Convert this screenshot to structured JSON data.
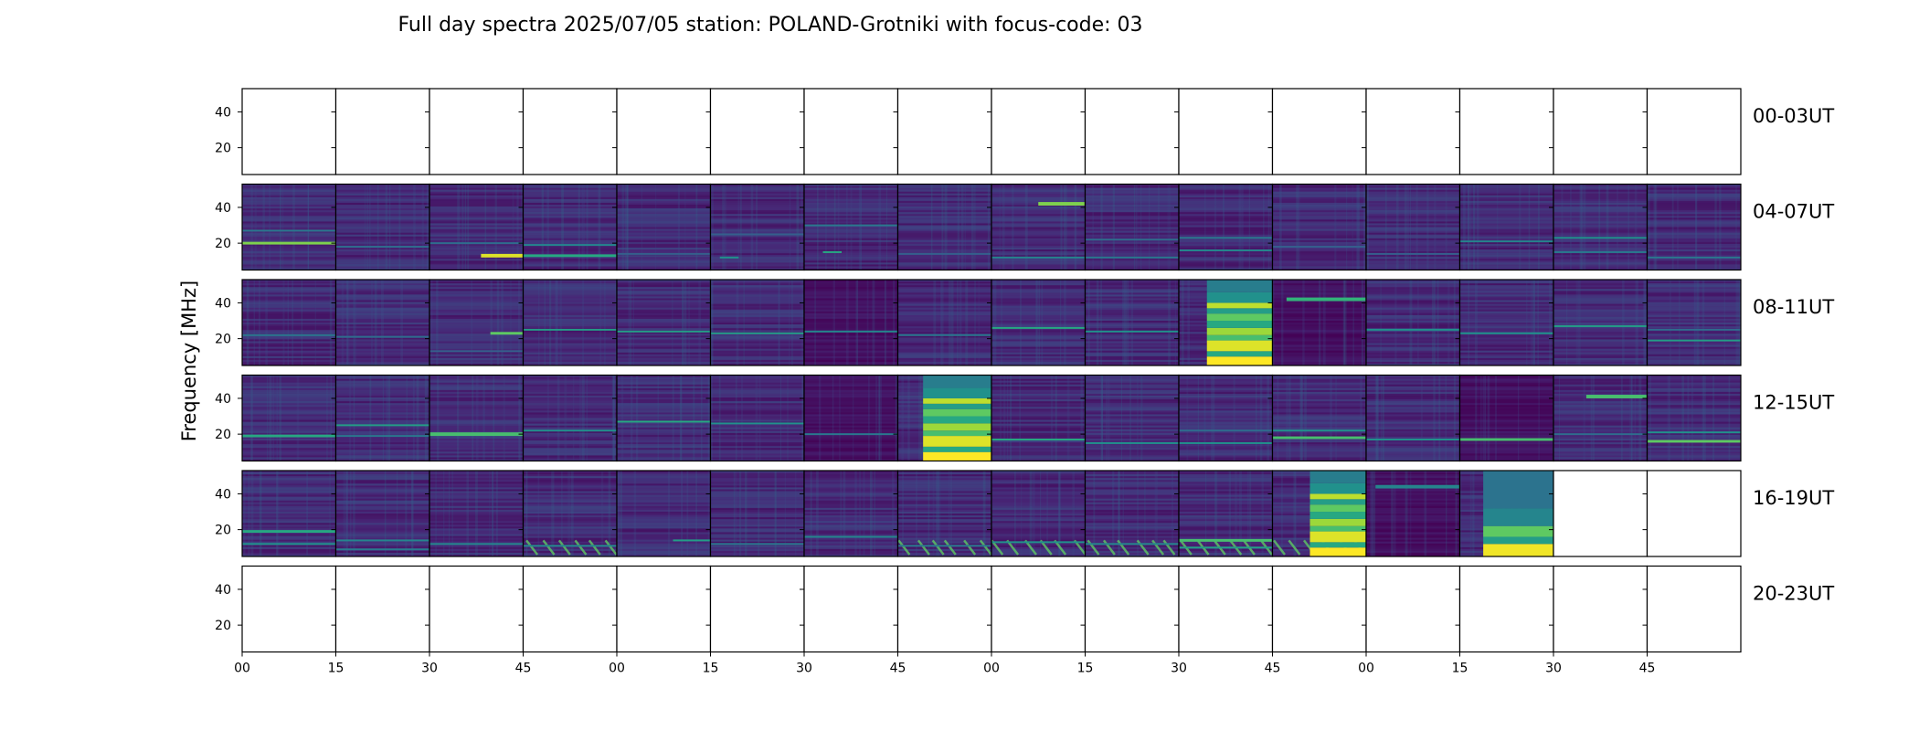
{
  "chart_data": {
    "type": "heatmap",
    "title": "Full day spectra 2025/07/05 station: POLAND-Grotniki with focus-code: 03",
    "ylabel": "Frequency [MHz]",
    "xlabel": "",
    "x_tick_labels": [
      "00",
      "15",
      "30",
      "45",
      "00",
      "15",
      "30",
      "45",
      "00",
      "15",
      "30",
      "45",
      "00",
      "15",
      "30",
      "45"
    ],
    "y_ticks": [
      20,
      40
    ],
    "ylim": [
      5,
      53
    ],
    "minutes_per_panel": 15,
    "panels_per_row": 16,
    "colormap": "viridis",
    "colormap_stops": [
      "#440154",
      "#472d7b",
      "#3b528b",
      "#2c728e",
      "#21918c",
      "#28ae80",
      "#5ec962",
      "#addc30",
      "#fde725"
    ],
    "rows": [
      {
        "label": "00-03UT",
        "panels": [
          {
            "has_data": false
          },
          {
            "has_data": false
          },
          {
            "has_data": false
          },
          {
            "has_data": false
          },
          {
            "has_data": false
          },
          {
            "has_data": false
          },
          {
            "has_data": false
          },
          {
            "has_data": false
          },
          {
            "has_data": false
          },
          {
            "has_data": false
          },
          {
            "has_data": false
          },
          {
            "has_data": false
          },
          {
            "has_data": false
          },
          {
            "has_data": false
          },
          {
            "has_data": false
          },
          {
            "has_data": false
          }
        ]
      },
      {
        "label": "04-07UT",
        "panels": [
          {
            "has_data": true,
            "bright_bands": [
              {
                "f": 20,
                "w": 1.5,
                "v": 0.8
              },
              {
                "f": 27,
                "w": 1,
                "v": 0.4
              }
            ]
          },
          {
            "has_data": true,
            "bright_bands": [
              {
                "f": 18,
                "w": 1,
                "v": 0.35
              }
            ]
          },
          {
            "has_data": true,
            "bright_bands": [
              {
                "f": 13,
                "w": 2,
                "v": 0.95,
                "t0": 0.55,
                "t1": 1
              },
              {
                "f": 20,
                "w": 1,
                "v": 0.35
              }
            ]
          },
          {
            "has_data": true,
            "bright_bands": [
              {
                "f": 13,
                "w": 1.5,
                "v": 0.6
              },
              {
                "f": 19,
                "w": 1,
                "v": 0.45
              }
            ]
          },
          {
            "has_data": true,
            "bright_bands": [
              {
                "f": 14,
                "w": 1,
                "v": 0.3
              }
            ]
          },
          {
            "has_data": true,
            "bright_bands": [
              {
                "f": 12,
                "w": 1,
                "v": 0.5,
                "t0": 0.1,
                "t1": 0.3
              },
              {
                "f": 25,
                "w": 1,
                "v": 0.3
              }
            ]
          },
          {
            "has_data": true,
            "bright_bands": [
              {
                "f": 15,
                "w": 1,
                "v": 0.6,
                "t0": 0.2,
                "t1": 0.4
              },
              {
                "f": 30,
                "w": 1,
                "v": 0.4
              }
            ]
          },
          {
            "has_data": true,
            "bright_bands": [
              {
                "f": 14,
                "w": 1,
                "v": 0.3
              }
            ]
          },
          {
            "has_data": true,
            "bright_bands": [
              {
                "f": 42,
                "w": 2,
                "v": 0.8,
                "t0": 0.5,
                "t1": 1
              },
              {
                "f": 12,
                "w": 1,
                "v": 0.45
              }
            ]
          },
          {
            "has_data": true,
            "bright_bands": [
              {
                "f": 22,
                "w": 1,
                "v": 0.35
              },
              {
                "f": 12,
                "w": 1,
                "v": 0.4
              }
            ]
          },
          {
            "has_data": true,
            "bright_bands": [
              {
                "f": 16,
                "w": 1,
                "v": 0.45
              },
              {
                "f": 23,
                "w": 1,
                "v": 0.4
              }
            ]
          },
          {
            "has_data": true,
            "bright_bands": [
              {
                "f": 18,
                "w": 1,
                "v": 0.3
              }
            ]
          },
          {
            "has_data": true,
            "bright_bands": [
              {
                "f": 14,
                "w": 1,
                "v": 0.3
              }
            ]
          },
          {
            "has_data": true,
            "bright_bands": [
              {
                "f": 21,
                "w": 1,
                "v": 0.45
              }
            ]
          },
          {
            "has_data": true,
            "bright_bands": [
              {
                "f": 23,
                "w": 1,
                "v": 0.5
              },
              {
                "f": 15,
                "w": 1,
                "v": 0.4
              }
            ]
          },
          {
            "has_data": true,
            "bright_bands": [
              {
                "f": 12,
                "w": 1,
                "v": 0.4
              }
            ]
          }
        ]
      },
      {
        "label": "08-11UT",
        "panels": [
          {
            "has_data": true,
            "bright_bands": [
              {
                "f": 22,
                "w": 1,
                "v": 0.4
              }
            ]
          },
          {
            "has_data": true,
            "bright_bands": [
              {
                "f": 21,
                "w": 1,
                "v": 0.35
              }
            ]
          },
          {
            "has_data": true,
            "bright_bands": [
              {
                "f": 23,
                "w": 1.5,
                "v": 0.75,
                "t0": 0.65,
                "t1": 1
              },
              {
                "f": 13,
                "w": 1,
                "v": 0.3
              }
            ]
          },
          {
            "has_data": true,
            "bright_bands": [
              {
                "f": 25,
                "w": 1,
                "v": 0.55
              }
            ]
          },
          {
            "has_data": true,
            "bright_bands": [
              {
                "f": 24,
                "w": 1,
                "v": 0.55
              }
            ]
          },
          {
            "has_data": true,
            "bright_bands": [
              {
                "f": 23,
                "w": 1,
                "v": 0.55
              }
            ]
          },
          {
            "has_data": true,
            "bright_bands": [
              {
                "f": 24,
                "w": 1,
                "v": 0.45
              }
            ],
            "dark": true
          },
          {
            "has_data": true,
            "bright_bands": [
              {
                "f": 22,
                "w": 1,
                "v": 0.4
              }
            ]
          },
          {
            "has_data": true,
            "bright_bands": [
              {
                "f": 26,
                "w": 1,
                "v": 0.6
              }
            ]
          },
          {
            "has_data": true,
            "bright_bands": [
              {
                "f": 24,
                "w": 1,
                "v": 0.5
              }
            ]
          },
          {
            "has_data": true,
            "flare": {
              "t0": 0.3,
              "t1": 1
            }
          },
          {
            "has_data": true,
            "bright_bands": [
              {
                "f": 42,
                "w": 2,
                "v": 0.65,
                "t0": 0.15,
                "t1": 1
              }
            ],
            "dark": true
          },
          {
            "has_data": true,
            "bright_bands": [
              {
                "f": 25,
                "w": 1,
                "v": 0.5
              }
            ]
          },
          {
            "has_data": true,
            "bright_bands": [
              {
                "f": 23,
                "w": 1,
                "v": 0.5
              }
            ]
          },
          {
            "has_data": true,
            "bright_bands": [
              {
                "f": 27,
                "w": 1,
                "v": 0.55
              }
            ]
          },
          {
            "has_data": true,
            "bright_bands": [
              {
                "f": 19,
                "w": 1,
                "v": 0.55
              },
              {
                "f": 25,
                "w": 1,
                "v": 0.35
              }
            ]
          }
        ]
      },
      {
        "label": "12-15UT",
        "panels": [
          {
            "has_data": true,
            "bright_bands": [
              {
                "f": 19,
                "w": 1.5,
                "v": 0.6
              }
            ]
          },
          {
            "has_data": true,
            "bright_bands": [
              {
                "f": 25,
                "w": 1,
                "v": 0.55
              },
              {
                "f": 19,
                "w": 1,
                "v": 0.4
              }
            ]
          },
          {
            "has_data": true,
            "bright_bands": [
              {
                "f": 20,
                "w": 2,
                "v": 0.7
              }
            ]
          },
          {
            "has_data": true,
            "bright_bands": [
              {
                "f": 22,
                "w": 1,
                "v": 0.5
              }
            ]
          },
          {
            "has_data": true,
            "bright_bands": [
              {
                "f": 27,
                "w": 1,
                "v": 0.6
              }
            ]
          },
          {
            "has_data": true,
            "bright_bands": [
              {
                "f": 26,
                "w": 1,
                "v": 0.5
              }
            ]
          },
          {
            "has_data": true,
            "bright_bands": [
              {
                "f": 20,
                "w": 1,
                "v": 0.4
              }
            ],
            "dark": true
          },
          {
            "has_data": true,
            "flare": {
              "t0": 0.27,
              "t1": 1
            }
          },
          {
            "has_data": true,
            "bright_bands": [
              {
                "f": 17,
                "w": 1,
                "v": 0.6
              }
            ]
          },
          {
            "has_data": true,
            "bright_bands": [
              {
                "f": 15,
                "w": 1,
                "v": 0.5
              }
            ]
          },
          {
            "has_data": true,
            "bright_bands": [
              {
                "f": 15,
                "w": 1,
                "v": 0.5
              },
              {
                "f": 22,
                "w": 1,
                "v": 0.35
              }
            ]
          },
          {
            "has_data": true,
            "bright_bands": [
              {
                "f": 18,
                "w": 1.5,
                "v": 0.7
              },
              {
                "f": 22,
                "w": 1,
                "v": 0.5
              }
            ]
          },
          {
            "has_data": true,
            "bright_bands": [
              {
                "f": 17,
                "w": 1,
                "v": 0.5
              }
            ]
          },
          {
            "has_data": true,
            "bright_bands": [
              {
                "f": 17,
                "w": 1.5,
                "v": 0.7
              }
            ],
            "dark": true
          },
          {
            "has_data": true,
            "bright_bands": [
              {
                "f": 41,
                "w": 2,
                "v": 0.7,
                "t0": 0.35,
                "t1": 1
              },
              {
                "f": 20,
                "w": 1,
                "v": 0.35
              }
            ]
          },
          {
            "has_data": true,
            "bright_bands": [
              {
                "f": 16,
                "w": 1.5,
                "v": 0.75
              },
              {
                "f": 21,
                "w": 1,
                "v": 0.5
              }
            ]
          }
        ]
      },
      {
        "label": "16-19UT",
        "panels": [
          {
            "has_data": true,
            "bright_bands": [
              {
                "f": 19,
                "w": 1.5,
                "v": 0.6
              },
              {
                "f": 12,
                "w": 1,
                "v": 0.5
              }
            ]
          },
          {
            "has_data": true,
            "bright_bands": [
              {
                "f": 14,
                "w": 1,
                "v": 0.45
              },
              {
                "f": 9,
                "w": 1,
                "v": 0.4
              }
            ]
          },
          {
            "has_data": true,
            "bright_bands": [
              {
                "f": 12,
                "w": 1,
                "v": 0.45
              }
            ]
          },
          {
            "has_data": true,
            "bright_bands": [
              {
                "f": 11,
                "w": 1,
                "v": 0.45
              }
            ],
            "diagonals": true
          },
          {
            "has_data": true,
            "bright_bands": [
              {
                "f": 14,
                "w": 1,
                "v": 0.55,
                "t0": 0.6,
                "t1": 1
              }
            ]
          },
          {
            "has_data": true,
            "bright_bands": [
              {
                "f": 12,
                "w": 1,
                "v": 0.4
              }
            ]
          },
          {
            "has_data": true,
            "bright_bands": [
              {
                "f": 16,
                "w": 1,
                "v": 0.45
              }
            ]
          },
          {
            "has_data": true,
            "bright_bands": [
              {
                "f": 11,
                "w": 1,
                "v": 0.4
              }
            ],
            "diagonals": true
          },
          {
            "has_data": true,
            "bright_bands": [
              {
                "f": 13,
                "w": 1,
                "v": 0.5
              }
            ],
            "diagonals": true
          },
          {
            "has_data": true,
            "bright_bands": [
              {
                "f": 12,
                "w": 1,
                "v": 0.45
              }
            ],
            "diagonals": true
          },
          {
            "has_data": true,
            "bright_bands": [
              {
                "f": 14,
                "w": 1.5,
                "v": 0.7
              },
              {
                "f": 10,
                "w": 1,
                "v": 0.55
              }
            ],
            "diagonals": true
          },
          {
            "has_data": true,
            "flare": {
              "t0": 0.4,
              "t1": 1
            },
            "diagonals": true
          },
          {
            "has_data": true,
            "bright_bands": [
              {
                "f": 44,
                "w": 2,
                "v": 0.45,
                "t0": 0.1,
                "t1": 1
              }
            ],
            "dark": true
          },
          {
            "has_data": true,
            "flare": {
              "t0": 0.25,
              "t1": 1,
              "lower_only": true
            }
          },
          {
            "has_data": false
          },
          {
            "has_data": false
          }
        ]
      },
      {
        "label": "20-23UT",
        "panels": [
          {
            "has_data": false
          },
          {
            "has_data": false
          },
          {
            "has_data": false
          },
          {
            "has_data": false
          },
          {
            "has_data": false
          },
          {
            "has_data": false
          },
          {
            "has_data": false
          },
          {
            "has_data": false
          },
          {
            "has_data": false
          },
          {
            "has_data": false
          },
          {
            "has_data": false
          },
          {
            "has_data": false
          },
          {
            "has_data": false
          },
          {
            "has_data": false
          },
          {
            "has_data": false
          },
          {
            "has_data": false
          }
        ]
      }
    ]
  }
}
